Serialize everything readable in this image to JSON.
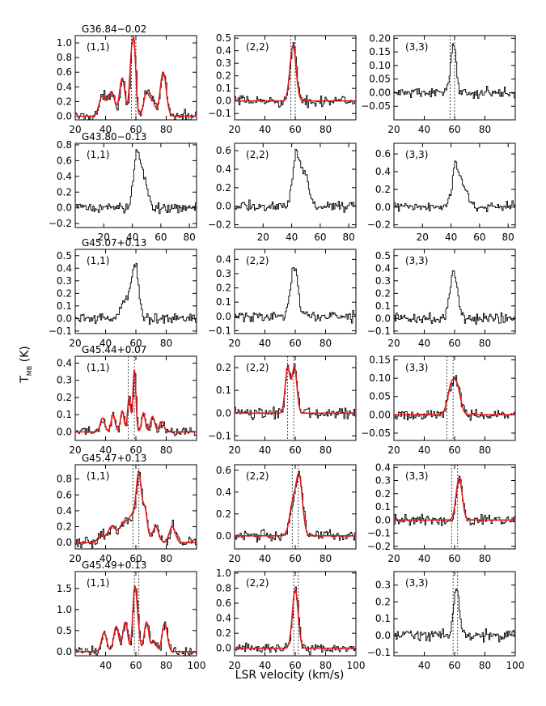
{
  "figure": {
    "ylabel": "T",
    "ylabel_sub": "MB",
    "ylabel_unit": "(K)",
    "xlabel": "LSR velocity (km/s)"
  },
  "chart_data": [
    {
      "type": "line",
      "title": "G36.84−0.02",
      "transition": "(1,1)",
      "xlim": [
        20,
        100
      ],
      "ylim": [
        -0.05,
        1.1
      ],
      "xticks": [
        20,
        40,
        60,
        80
      ],
      "yticks": [
        0.0,
        0.2,
        0.4,
        0.6,
        0.8,
        1.0
      ],
      "ytick_labels": [
        "0.0",
        "0.2",
        "0.4",
        "0.6",
        "0.8",
        "1.0"
      ],
      "markers": [
        57,
        60
      ],
      "fit": true,
      "peaks": [
        {
          "v": 38,
          "a": 0.28,
          "w": 2.2
        },
        {
          "v": 44,
          "a": 0.33,
          "w": 2.0
        },
        {
          "v": 51,
          "a": 0.52,
          "w": 1.8
        },
        {
          "v": 57,
          "a": 0.7,
          "w": 1.3
        },
        {
          "v": 59,
          "a": 0.78,
          "w": 1.2
        },
        {
          "v": 67,
          "a": 0.32,
          "w": 1.8
        },
        {
          "v": 71,
          "a": 0.2,
          "w": 1.6
        },
        {
          "v": 78,
          "a": 0.6,
          "w": 2.0
        }
      ]
    },
    {
      "type": "line",
      "title": "",
      "transition": "(2,2)",
      "xlim": [
        20,
        100
      ],
      "ylim": [
        -0.15,
        0.52
      ],
      "xticks": [
        20,
        40,
        60,
        80
      ],
      "yticks": [
        -0.1,
        0.0,
        0.1,
        0.2,
        0.3,
        0.4,
        0.5
      ],
      "ytick_labels": [
        "−0.1",
        "0.0",
        "0.1",
        "0.2",
        "0.3",
        "0.4",
        "0.5"
      ],
      "markers": [
        57,
        60
      ],
      "fit": true,
      "peaks": [
        {
          "v": 58.5,
          "a": 0.44,
          "w": 2.0
        }
      ]
    },
    {
      "type": "line",
      "title": "",
      "transition": "(3,3)",
      "xlim": [
        20,
        100
      ],
      "ylim": [
        -0.1,
        0.21
      ],
      "xticks": [
        20,
        40,
        60,
        80
      ],
      "yticks": [
        -0.05,
        0.0,
        0.05,
        0.1,
        0.15,
        0.2
      ],
      "ytick_labels": [
        "−0.05",
        "0.00",
        "0.05",
        "0.10",
        "0.15",
        "0.20"
      ],
      "markers": [
        57,
        60
      ],
      "fit": false,
      "peaks": [
        {
          "v": 59,
          "a": 0.17,
          "w": 1.8
        }
      ]
    },
    {
      "type": "line",
      "title": "G43.80−0.13",
      "transition": "(1,1)",
      "xlim": [
        0,
        85
      ],
      "ylim": [
        -0.25,
        0.82
      ],
      "xticks": [
        20,
        40,
        60,
        80
      ],
      "yticks": [
        -0.2,
        0.0,
        0.2,
        0.4,
        0.6,
        0.8
      ],
      "ytick_labels": [
        "−0.2",
        "0.0",
        "0.2",
        "0.4",
        "0.6",
        "0.8"
      ],
      "markers": [],
      "fit": false,
      "peaks": [
        {
          "v": 43,
          "a": 0.65,
          "w": 2.5
        },
        {
          "v": 48,
          "a": 0.3,
          "w": 3
        }
      ]
    },
    {
      "type": "line",
      "title": "",
      "transition": "(2,2)",
      "xlim": [
        0,
        85
      ],
      "ylim": [
        -0.23,
        0.68
      ],
      "xticks": [
        20,
        40,
        60,
        80
      ],
      "yticks": [
        -0.2,
        0.0,
        0.2,
        0.4,
        0.6
      ],
      "ytick_labels": [
        "−0.2",
        "0.0",
        "0.2",
        "0.4",
        "0.6"
      ],
      "markers": [],
      "fit": false,
      "peaks": [
        {
          "v": 43,
          "a": 0.55,
          "w": 2.5
        },
        {
          "v": 49,
          "a": 0.3,
          "w": 3
        }
      ]
    },
    {
      "type": "line",
      "title": "",
      "transition": "(3,3)",
      "xlim": [
        0,
        85
      ],
      "ylim": [
        -0.23,
        0.72
      ],
      "xticks": [
        20,
        40,
        60,
        80
      ],
      "yticks": [
        -0.2,
        0.0,
        0.2,
        0.4,
        0.6
      ],
      "ytick_labels": [
        "−0.2",
        "0.0",
        "0.2",
        "0.4",
        "0.6"
      ],
      "markers": [],
      "fit": false,
      "peaks": [
        {
          "v": 43,
          "a": 0.45,
          "w": 2.5
        },
        {
          "v": 49,
          "a": 0.2,
          "w": 3
        }
      ]
    },
    {
      "type": "line",
      "title": "G45.07+0.13",
      "transition": "(1,1)",
      "xlim": [
        20,
        100
      ],
      "ylim": [
        -0.12,
        0.55
      ],
      "xticks": [
        20,
        40,
        60,
        80
      ],
      "yticks": [
        -0.1,
        0.0,
        0.1,
        0.2,
        0.3,
        0.4,
        0.5
      ],
      "ytick_labels": [
        "−0.1",
        "0.0",
        "0.1",
        "0.2",
        "0.3",
        "0.4",
        "0.5"
      ],
      "markers": [],
      "fit": false,
      "peaks": [
        {
          "v": 59,
          "a": 0.42,
          "w": 2.3
        },
        {
          "v": 53,
          "a": 0.15,
          "w": 3
        }
      ]
    },
    {
      "type": "line",
      "title": "",
      "transition": "(2,2)",
      "xlim": [
        20,
        100
      ],
      "ylim": [
        -0.12,
        0.47
      ],
      "xticks": [
        20,
        40,
        60,
        80
      ],
      "yticks": [
        -0.1,
        0.0,
        0.1,
        0.2,
        0.3,
        0.4
      ],
      "ytick_labels": [
        "−0.1",
        "0.0",
        "0.1",
        "0.2",
        "0.3",
        "0.4"
      ],
      "markers": [],
      "fit": false,
      "peaks": [
        {
          "v": 59,
          "a": 0.35,
          "w": 2.5
        }
      ]
    },
    {
      "type": "line",
      "title": "",
      "transition": "(3,3)",
      "xlim": [
        20,
        100
      ],
      "ylim": [
        -0.12,
        0.55
      ],
      "xticks": [
        20,
        40,
        60,
        80
      ],
      "yticks": [
        -0.1,
        0.0,
        0.1,
        0.2,
        0.3,
        0.4,
        0.5
      ],
      "ytick_labels": [
        "−0.1",
        "0.0",
        "0.1",
        "0.2",
        "0.3",
        "0.4",
        "0.5"
      ],
      "markers": [],
      "fit": false,
      "peaks": [
        {
          "v": 59,
          "a": 0.38,
          "w": 2.5
        }
      ]
    },
    {
      "type": "line",
      "title": "G45.44+0.07",
      "transition": "(1,1)",
      "xlim": [
        20,
        100
      ],
      "ylim": [
        -0.05,
        0.44
      ],
      "xticks": [
        20,
        40,
        60,
        80
      ],
      "yticks": [
        0.0,
        0.1,
        0.2,
        0.3,
        0.4
      ],
      "ytick_labels": [
        "0.0",
        "0.1",
        "0.2",
        "0.3",
        "0.4"
      ],
      "markers": [
        55,
        59
      ],
      "fit": true,
      "peaks": [
        {
          "v": 38,
          "a": 0.08,
          "w": 1.5
        },
        {
          "v": 45,
          "a": 0.1,
          "w": 1.3
        },
        {
          "v": 51,
          "a": 0.12,
          "w": 1.2
        },
        {
          "v": 55.5,
          "a": 0.2,
          "w": 1.0
        },
        {
          "v": 59,
          "a": 0.36,
          "w": 1.0
        },
        {
          "v": 65,
          "a": 0.11,
          "w": 1.2
        },
        {
          "v": 71,
          "a": 0.09,
          "w": 1.4
        },
        {
          "v": 77,
          "a": 0.06,
          "w": 1.5
        }
      ]
    },
    {
      "type": "line",
      "title": "",
      "transition": "(2,2)",
      "xlim": [
        20,
        100
      ],
      "ylim": [
        -0.12,
        0.25
      ],
      "xticks": [
        20,
        40,
        60,
        80
      ],
      "yticks": [
        -0.1,
        0.0,
        0.1,
        0.2
      ],
      "ytick_labels": [
        "−0.1",
        "0.0",
        "0.1",
        "0.2"
      ],
      "markers": [
        55,
        59
      ],
      "fit": true,
      "peaks": [
        {
          "v": 55,
          "a": 0.2,
          "w": 1.6
        },
        {
          "v": 59.5,
          "a": 0.2,
          "w": 1.6
        }
      ]
    },
    {
      "type": "line",
      "title": "",
      "transition": "(3,3)",
      "xlim": [
        20,
        100
      ],
      "ylim": [
        -0.07,
        0.16
      ],
      "xticks": [
        20,
        40,
        60,
        80
      ],
      "yticks": [
        -0.05,
        0.0,
        0.05,
        0.1,
        0.15
      ],
      "ytick_labels": [
        "−0.05",
        "0.00",
        "0.05",
        "0.10",
        "0.15"
      ],
      "markers": [
        55,
        59
      ],
      "fit": true,
      "peaks": [
        {
          "v": 58,
          "a": 0.08,
          "w": 2.5
        },
        {
          "v": 62,
          "a": 0.06,
          "w": 2.2
        }
      ]
    },
    {
      "type": "line",
      "title": "G45.47+0.13",
      "transition": "(1,1)",
      "xlim": [
        20,
        100
      ],
      "ylim": [
        -0.08,
        0.98
      ],
      "xticks": [
        20,
        40,
        60,
        80
      ],
      "yticks": [
        0.0,
        0.2,
        0.4,
        0.6,
        0.8
      ],
      "ytick_labels": [
        "0.0",
        "0.2",
        "0.4",
        "0.6",
        "0.8"
      ],
      "markers": [
        58,
        62
      ],
      "fit": true,
      "peaks": [
        {
          "v": 37,
          "a": 0.1,
          "w": 2
        },
        {
          "v": 44,
          "a": 0.2,
          "w": 2.5
        },
        {
          "v": 52,
          "a": 0.25,
          "w": 3
        },
        {
          "v": 58,
          "a": 0.3,
          "w": 2.5
        },
        {
          "v": 62,
          "a": 0.78,
          "w": 1.7
        },
        {
          "v": 66,
          "a": 0.4,
          "w": 1.6
        },
        {
          "v": 73,
          "a": 0.2,
          "w": 2
        },
        {
          "v": 84,
          "a": 0.2,
          "w": 2
        }
      ]
    },
    {
      "type": "line",
      "title": "",
      "transition": "(2,2)",
      "xlim": [
        20,
        100
      ],
      "ylim": [
        -0.12,
        0.65
      ],
      "xticks": [
        20,
        40,
        60,
        80
      ],
      "yticks": [
        0.0,
        0.2,
        0.4,
        0.6
      ],
      "ytick_labels": [
        "0.0",
        "0.2",
        "0.4",
        "0.6"
      ],
      "markers": [
        58,
        62
      ],
      "fit": true,
      "peaks": [
        {
          "v": 58,
          "a": 0.25,
          "w": 2
        },
        {
          "v": 62.5,
          "a": 0.55,
          "w": 2.2
        }
      ]
    },
    {
      "type": "line",
      "title": "",
      "transition": "(3,3)",
      "xlim": [
        20,
        100
      ],
      "ylim": [
        -0.22,
        0.42
      ],
      "xticks": [
        20,
        40,
        60,
        80
      ],
      "yticks": [
        -0.2,
        -0.1,
        0.0,
        0.1,
        0.2,
        0.3,
        0.4
      ],
      "ytick_labels": [
        "−0.2",
        "−0.1",
        "0.0",
        "0.1",
        "0.2",
        "0.3",
        "0.4"
      ],
      "markers": [
        58,
        62
      ],
      "fit": true,
      "peaks": [
        {
          "v": 63,
          "a": 0.32,
          "w": 2.0
        }
      ]
    },
    {
      "type": "line",
      "title": "G45.49+0.13",
      "transition": "(1,1)",
      "xlim": [
        20,
        100
      ],
      "ylim": [
        -0.1,
        1.9
      ],
      "xticks": [
        40,
        60,
        80,
        100
      ],
      "yticks": [
        0.0,
        0.5,
        1.0,
        1.5
      ],
      "ytick_labels": [
        "0.0",
        "0.5",
        "1.0",
        "1.5"
      ],
      "markers": [
        59,
        62
      ],
      "fit": true,
      "peaks": [
        {
          "v": 39,
          "a": 0.45,
          "w": 1.7
        },
        {
          "v": 47,
          "a": 0.6,
          "w": 1.6
        },
        {
          "v": 53,
          "a": 0.7,
          "w": 1.6
        },
        {
          "v": 59,
          "a": 1.3,
          "w": 1.2
        },
        {
          "v": 61,
          "a": 0.7,
          "w": 1.3
        },
        {
          "v": 67,
          "a": 0.7,
          "w": 1.5
        },
        {
          "v": 72,
          "a": 0.25,
          "w": 1.5
        },
        {
          "v": 79,
          "a": 0.68,
          "w": 1.7
        }
      ]
    },
    {
      "type": "line",
      "title": "",
      "transition": "(2,2)",
      "xlim": [
        20,
        100
      ],
      "ylim": [
        -0.1,
        1.02
      ],
      "xticks": [
        20,
        40,
        60,
        80,
        100
      ],
      "yticks": [
        0.0,
        0.2,
        0.4,
        0.6,
        0.8,
        1.0
      ],
      "ytick_labels": [
        "0.0",
        "0.2",
        "0.4",
        "0.6",
        "0.8",
        "1.0"
      ],
      "markers": [
        59,
        62
      ],
      "fit": true,
      "peaks": [
        {
          "v": 60,
          "a": 0.78,
          "w": 1.9
        }
      ]
    },
    {
      "type": "line",
      "title": "",
      "transition": "(3,3)",
      "xlim": [
        20,
        100
      ],
      "ylim": [
        -0.12,
        0.38
      ],
      "xticks": [
        40,
        60,
        80,
        100
      ],
      "yticks": [
        -0.1,
        0.0,
        0.1,
        0.2,
        0.3
      ],
      "ytick_labels": [
        "−0.1",
        "0.0",
        "0.1",
        "0.2",
        "0.3"
      ],
      "markers": [
        59,
        62
      ],
      "fit": false,
      "peaks": [
        {
          "v": 61,
          "a": 0.27,
          "w": 2.0
        }
      ]
    }
  ]
}
